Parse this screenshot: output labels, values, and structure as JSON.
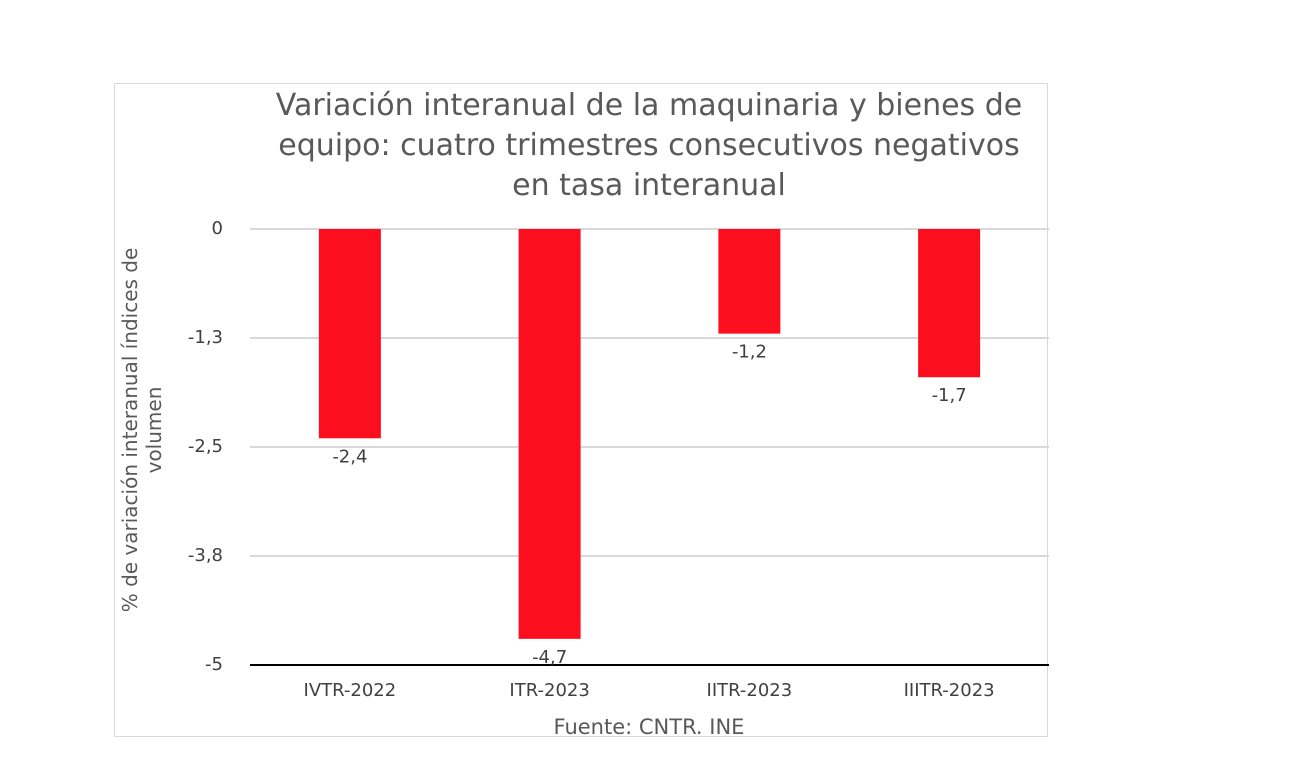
{
  "chart_data": {
    "type": "bar",
    "title": "Variación interanual de la maquinaria y bienes de equipo: cuatro trimestres consecutivos negativos en tasa interanual",
    "title_lines": [
      "Variación interanual de la maquinaria y bienes de",
      "equipo: cuatro trimestres consecutivos negativos",
      "en tasa interanual"
    ],
    "categories": [
      "IVTR-2022",
      "ITR-2023",
      "IITR-2023",
      "IIITR-2023"
    ],
    "values": [
      -2.4,
      -4.7,
      -1.2,
      -1.7
    ],
    "data_labels": [
      "-2,4",
      "-4,7",
      "-1,2",
      "-1,7"
    ],
    "y_ticks": [
      0,
      -1.25,
      -2.5,
      -3.75,
      -5
    ],
    "y_tick_labels": [
      "0",
      "-1,3",
      "-2,5",
      "-3,8",
      "-5"
    ],
    "ylim": [
      -5,
      0
    ],
    "ylabel_lines": [
      "% de variación interanual índices de",
      "volumen"
    ],
    "xlabel": "Fuente: CNTR. INE",
    "bar_color": "#fb0f1f",
    "grid": true,
    "legend": "none"
  }
}
